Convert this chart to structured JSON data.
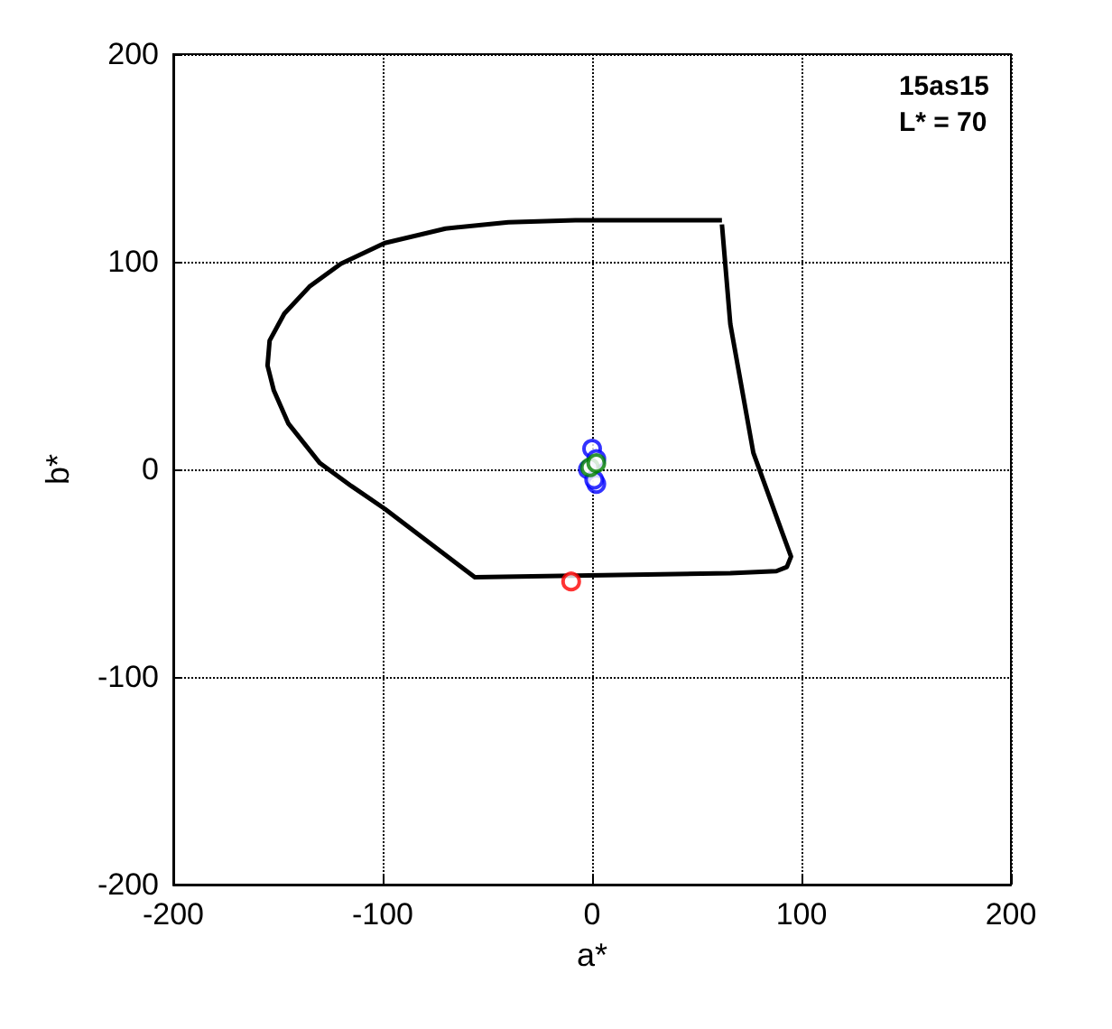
{
  "chart_data": {
    "type": "line",
    "xlabel": "a*",
    "ylabel": "b*",
    "annotations": [
      "15as15\nL* = 70"
    ],
    "xlim": [
      -200,
      200
    ],
    "ylim": [
      -200,
      200
    ],
    "xticks": [
      -200,
      -100,
      0,
      100,
      200
    ],
    "yticks": [
      -200,
      -100,
      0,
      100,
      200
    ],
    "grid": true,
    "marker": "circle",
    "series": [
      {
        "marker": "none",
        "color": "#000000",
        "x": [
          62,
          -8,
          -40,
          -70,
          -99,
          -120,
          -135,
          -147,
          -154,
          -155,
          -152,
          -145,
          -130,
          -115,
          -99,
          -56,
          66,
          88,
          93,
          95,
          91,
          77,
          66,
          62
        ],
        "values": [
          120,
          120,
          119,
          116,
          109,
          99,
          88,
          75,
          62,
          50,
          38,
          22,
          3,
          -8,
          -19,
          -52,
          -50,
          -49,
          -47,
          -42,
          -31,
          8,
          70,
          118
        ]
      },
      {
        "type": "scatter",
        "color": "#0000ff",
        "x": [
          0,
          2,
          -2,
          2,
          1
        ],
        "values": [
          10,
          5,
          0,
          -7,
          -5
        ]
      },
      {
        "type": "scatter",
        "color": "#008000",
        "x": [
          -1,
          2
        ],
        "values": [
          1,
          3
        ]
      },
      {
        "type": "scatter",
        "color": "#ff0000",
        "x": [
          -10
        ],
        "values": [
          -54
        ]
      }
    ]
  }
}
